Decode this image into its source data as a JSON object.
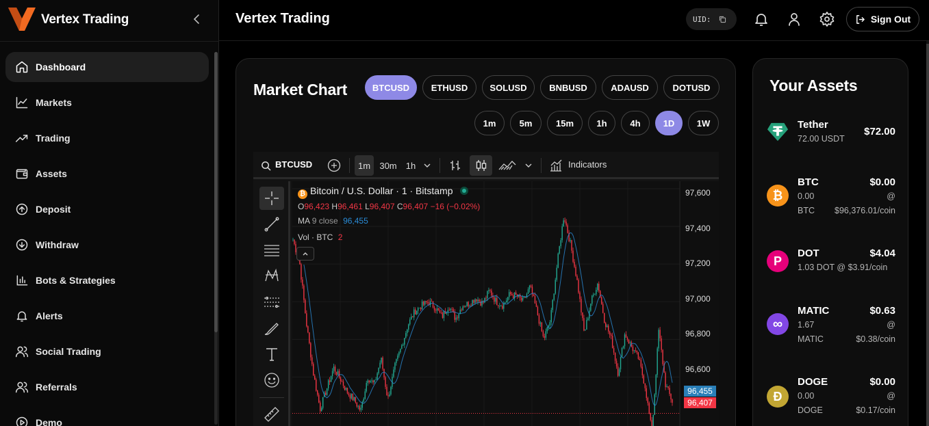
{
  "app": {
    "brand": "Vertex Trading",
    "accent": "#8e89e6",
    "logo_color": "#f26a21"
  },
  "sidebar": {
    "items": [
      {
        "label": "Dashboard",
        "icon": "home-icon",
        "active": true
      },
      {
        "label": "Markets",
        "icon": "line-chart-icon"
      },
      {
        "label": "Trading",
        "icon": "trending-up-icon"
      },
      {
        "label": "Assets",
        "icon": "wallet-icon"
      },
      {
        "label": "Deposit",
        "icon": "arrow-up-circle-icon"
      },
      {
        "label": "Withdraw",
        "icon": "arrow-down-circle-icon"
      },
      {
        "label": "Bots & Strategies",
        "icon": "bar-chart-icon"
      },
      {
        "label": "Alerts",
        "icon": "bell-icon"
      },
      {
        "label": "Social Trading",
        "icon": "users-icon"
      },
      {
        "label": "Referrals",
        "icon": "users-icon"
      },
      {
        "label": "Demo",
        "icon": "play-circle-icon"
      }
    ]
  },
  "header": {
    "title": "Vertex Trading",
    "uid_label": "UID:",
    "sign_out": "Sign Out"
  },
  "market": {
    "title": "Market Chart",
    "symbols": [
      "BTCUSD",
      "ETHUSD",
      "SOLUSD",
      "BNBUSD",
      "ADAUSD",
      "DOTUSD"
    ],
    "active_symbol": "BTCUSD",
    "intervals": [
      "1m",
      "5m",
      "15m",
      "1h",
      "4h",
      "1D",
      "1W"
    ],
    "active_interval": "1D"
  },
  "chart_widget": {
    "search_symbol": "BTCUSD",
    "toolbar_intervals": [
      "1m",
      "30m",
      "1h"
    ],
    "indicators_label": "Indicators",
    "legend": {
      "title": "Bitcoin / U.S. Dollar · 1 · Bitstamp",
      "o_label": "O",
      "o": "96,423",
      "h_label": "H",
      "h": "96,461",
      "l_label": "L",
      "l": "96,407",
      "c_label": "C",
      "c": "96,407",
      "change": "−16 (−0.02%)",
      "ma_label": "MA",
      "ma_params": "9 close",
      "ma_value": "96,455",
      "vol_label": "Vol · BTC",
      "vol_value": "2"
    },
    "y_ticks": [
      "97,600",
      "97,400",
      "97,200",
      "97,000",
      "96,800",
      "96,600"
    ],
    "ma_tag": "96,455",
    "price_tag": "96,407",
    "colors": {
      "up": "#22ab94",
      "down": "#f23645",
      "ma": "#2a8bd6"
    }
  },
  "chart_data": {
    "type": "candlestick",
    "ylim": [
      96340,
      97640
    ],
    "y_ticks": [
      97600,
      97400,
      97200,
      97000,
      96800,
      96600
    ],
    "approx_close_path": [
      97330,
      97200,
      96880,
      96620,
      96430,
      96540,
      96650,
      96590,
      96520,
      96480,
      96420,
      96600,
      96560,
      96700,
      96480,
      96650,
      96760,
      96880,
      96950,
      96980,
      97000,
      96970,
      96920,
      96980,
      96910,
      96980,
      96990,
      97020,
      96990,
      97060,
      97000,
      96980,
      97040,
      97030,
      97000,
      97080,
      96950,
      96800,
      96900,
      97200,
      97460,
      97300,
      97100,
      96830,
      97000,
      97100,
      96900,
      96800,
      96620,
      96830,
      96760,
      96700,
      96550,
      96300,
      96850,
      96560,
      96470
    ]
  },
  "assets": {
    "title": "Your Assets",
    "items": [
      {
        "name": "Tether",
        "value": "$72.00",
        "sub1": "72.00 USDT",
        "color": "#26a17b",
        "glyph": "₮"
      },
      {
        "name": "BTC",
        "value": "$0.00",
        "sub1": "0.00",
        "sub2": "@",
        "sub3": "BTC",
        "sub4": "$96,376.01/coin",
        "color": "#f7931a",
        "glyph": "₿"
      },
      {
        "name": "DOT",
        "value": "$4.04",
        "sub1": "1.03 DOT @ $3.91/coin",
        "color": "#e6007a",
        "glyph": "P"
      },
      {
        "name": "MATIC",
        "value": "$0.63",
        "sub1": "1.67",
        "sub2": "@",
        "sub3": "MATIC",
        "sub4": "$0.38/coin",
        "color": "#8247e5",
        "glyph": "∞"
      },
      {
        "name": "DOGE",
        "value": "$0.00",
        "sub1": "0.00",
        "sub2": "@",
        "sub3": "DOGE",
        "sub4": "$0.17/coin",
        "color": "#c2a633",
        "glyph": "Ð"
      }
    ]
  }
}
